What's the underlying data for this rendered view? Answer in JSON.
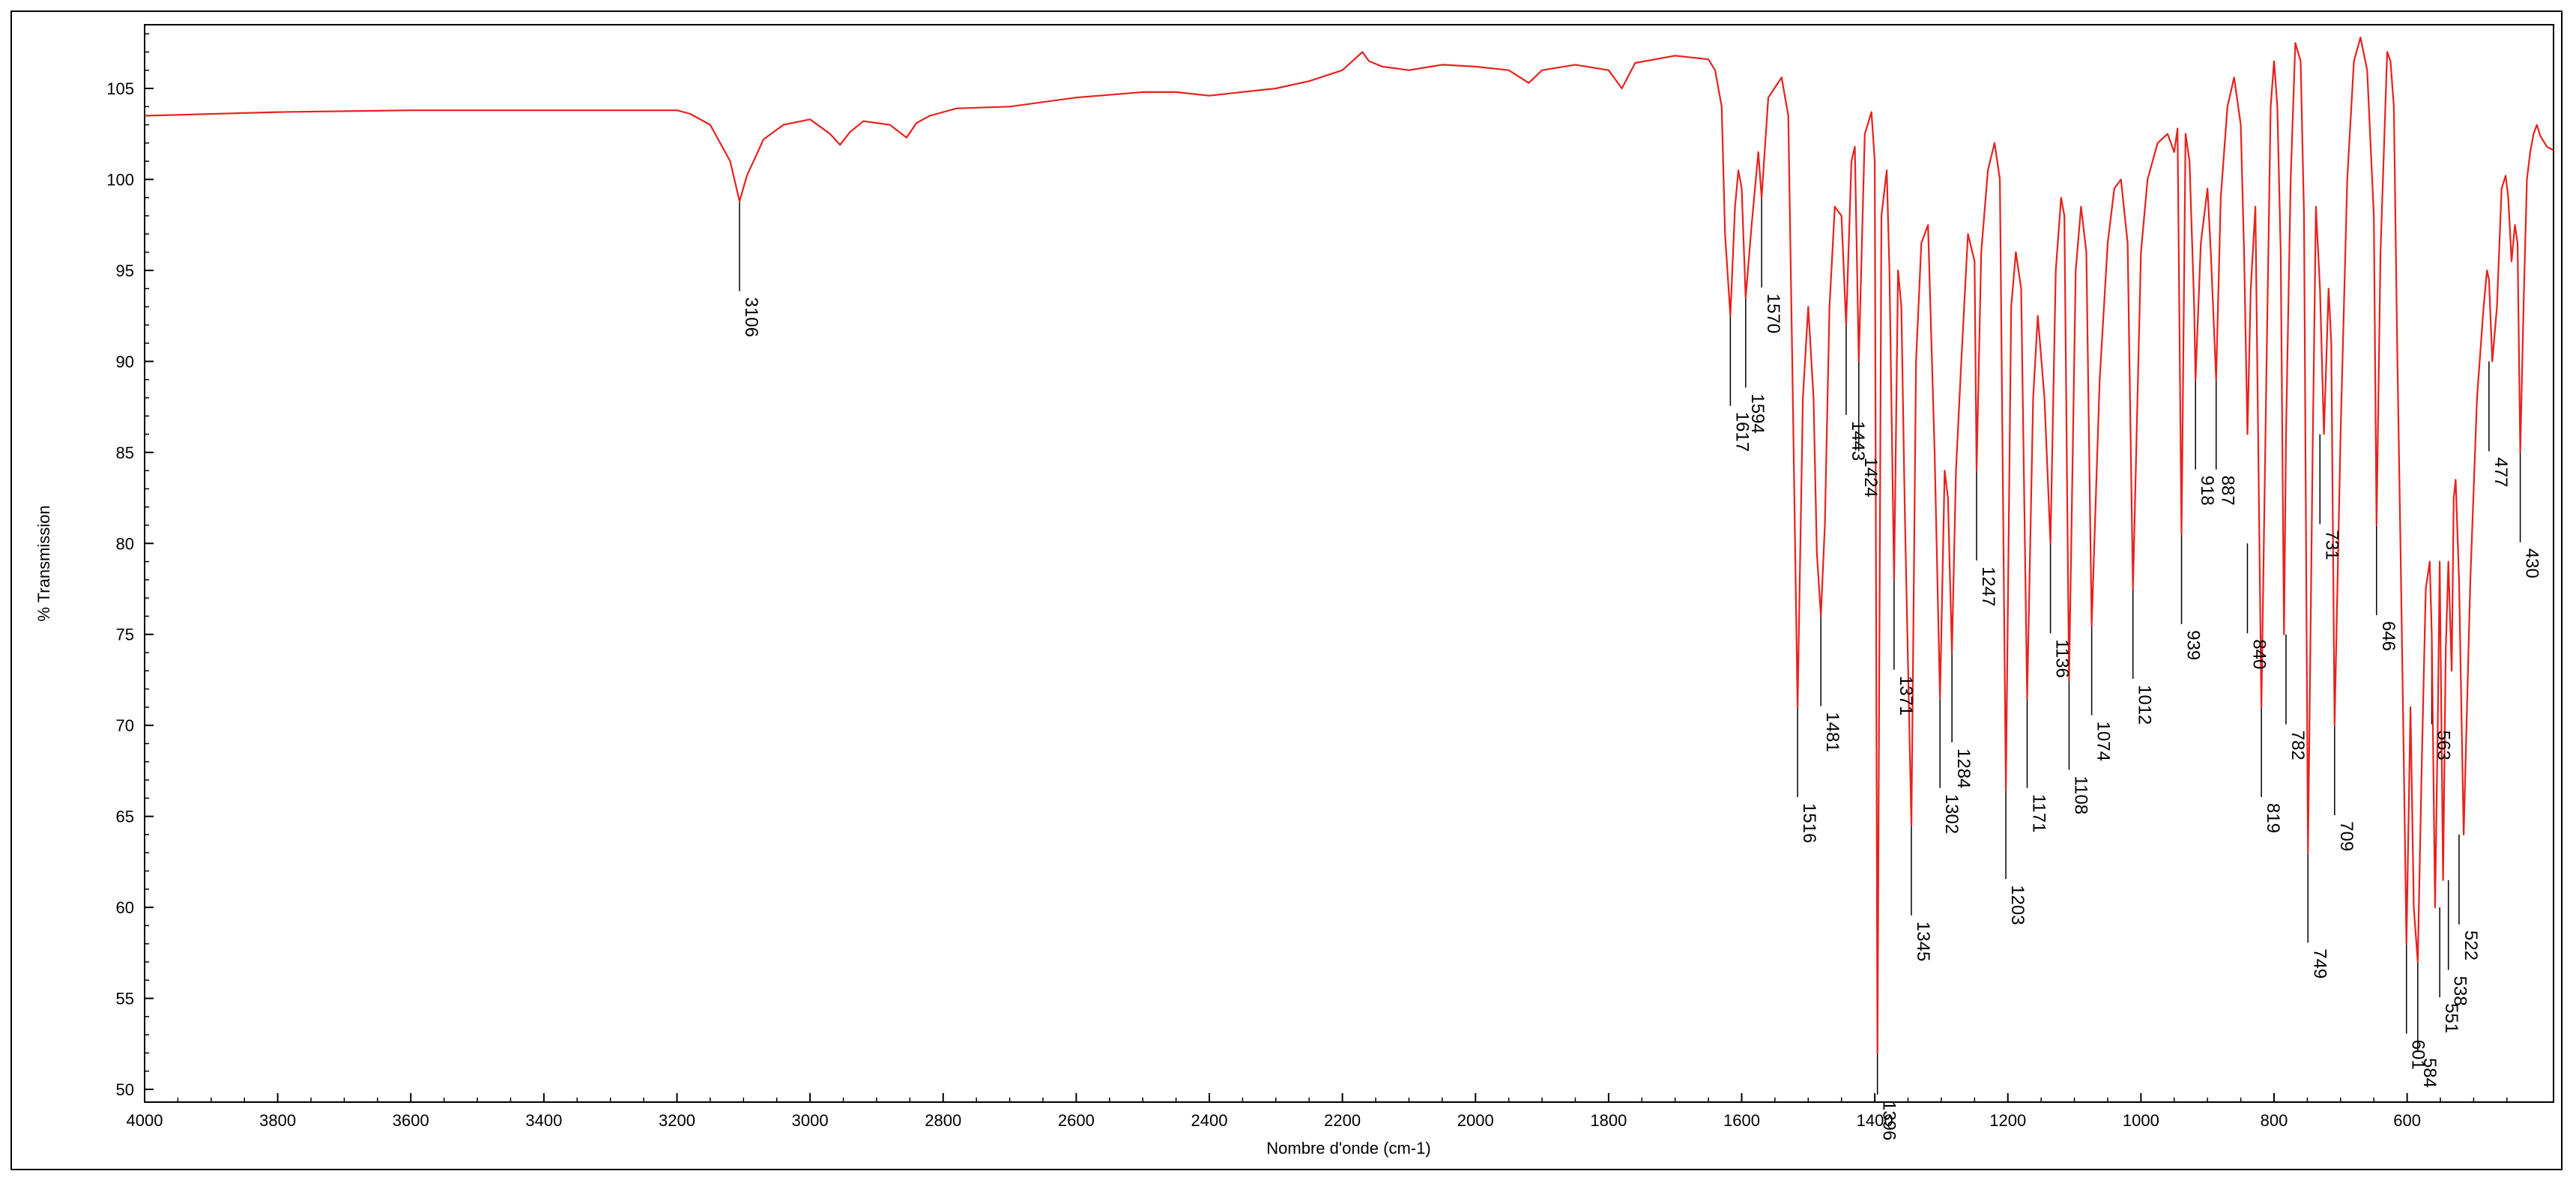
{
  "chart_data": {
    "type": "line",
    "title": "",
    "xlabel": "Nombre d'onde (cm-1)",
    "ylabel": "% Transmission",
    "xlim": [
      4000,
      380
    ],
    "ylim": [
      49.3,
      108.5
    ],
    "x_ticks": [
      "4000",
      "3800",
      "3600",
      "3400",
      "3200",
      "3000",
      "2800",
      "2600",
      "2400",
      "2200",
      "2000",
      "1800",
      "1600",
      "1400",
      "1200",
      "1000",
      "800",
      "600"
    ],
    "y_ticks": [
      "50",
      "55",
      "60",
      "65",
      "70",
      "75",
      "80",
      "85",
      "90",
      "95",
      "100",
      "105"
    ],
    "grid": false,
    "series": [
      {
        "color": "#e8211d",
        "x": [
          4000,
          3800,
          3600,
          3400,
          3300,
          3200,
          3180,
          3150,
          3120,
          3106,
          3095,
          3070,
          3040,
          3000,
          2970,
          2955,
          2940,
          2920,
          2880,
          2855,
          2840,
          2820,
          2780,
          2700,
          2600,
          2500,
          2450,
          2400,
          2300,
          2250,
          2200,
          2170,
          2160,
          2140,
          2100,
          2050,
          2000,
          1950,
          1920,
          1900,
          1850,
          1800,
          1780,
          1760,
          1700,
          1650,
          1640,
          1630,
          1625,
          1617,
          1610,
          1605,
          1600,
          1594,
          1585,
          1575,
          1570,
          1560,
          1540,
          1530,
          1524,
          1516,
          1508,
          1500,
          1492,
          1487,
          1481,
          1475,
          1468,
          1460,
          1450,
          1443,
          1435,
          1430,
          1424,
          1415,
          1405,
          1400,
          1396,
          1390,
          1382,
          1378,
          1371,
          1365,
          1360,
          1355,
          1345,
          1338,
          1330,
          1320,
          1310,
          1302,
          1295,
          1290,
          1284,
          1278,
          1270,
          1260,
          1250,
          1247,
          1240,
          1230,
          1220,
          1212,
          1203,
          1195,
          1188,
          1180,
          1171,
          1162,
          1155,
          1145,
          1136,
          1128,
          1120,
          1115,
          1108,
          1098,
          1090,
          1082,
          1074,
          1062,
          1050,
          1040,
          1030,
          1020,
          1012,
          1000,
          990,
          975,
          960,
          950,
          945,
          939,
          933,
          927,
          920,
          918,
          910,
          900,
          895,
          887,
          880,
          870,
          860,
          850,
          845,
          840,
          835,
          828,
          822,
          819,
          812,
          805,
          800,
          795,
          790,
          785,
          782,
          775,
          768,
          760,
          755,
          749,
          742,
          737,
          731,
          725,
          718,
          714,
          709,
          700,
          690,
          680,
          670,
          660,
          650,
          646,
          640,
          630,
          625,
          620,
          615,
          610,
          605,
          601,
          595,
          590,
          584,
          578,
          572,
          566,
          563,
          558,
          554,
          551,
          546,
          542,
          538,
          533,
          530,
          527,
          522,
          515,
          505,
          495,
          485,
          480,
          477,
          472,
          465,
          458,
          452,
          448,
          443,
          438,
          434,
          430,
          425,
          420,
          415,
          410,
          405,
          400,
          390,
          380
        ],
        "y": [
          103.5,
          103.7,
          103.8,
          103.8,
          103.8,
          103.8,
          103.6,
          103.0,
          101.0,
          98.8,
          100.2,
          102.2,
          103.0,
          103.3,
          102.5,
          101.9,
          102.6,
          103.2,
          103.0,
          102.3,
          103.1,
          103.5,
          103.9,
          104.0,
          104.5,
          104.8,
          104.8,
          104.6,
          105.0,
          105.4,
          106.0,
          107.0,
          106.5,
          106.2,
          106.0,
          106.3,
          106.2,
          106.0,
          105.3,
          106.0,
          106.3,
          106.0,
          105.0,
          106.4,
          106.8,
          106.6,
          106.0,
          104.0,
          97.0,
          92.5,
          98.5,
          100.5,
          99.5,
          93.5,
          97.5,
          101.5,
          99.0,
          104.5,
          105.6,
          103.5,
          90.0,
          71.0,
          88.0,
          93.0,
          88.0,
          79.5,
          76.0,
          81.0,
          93.0,
          98.5,
          98.0,
          92.0,
          101.0,
          101.8,
          90.0,
          102.5,
          103.7,
          101.0,
          52.0,
          98.0,
          100.5,
          95.0,
          78.0,
          95.0,
          93.0,
          82.0,
          64.5,
          90.0,
          96.5,
          97.5,
          85.0,
          71.5,
          84.0,
          82.5,
          74.0,
          84.0,
          90.0,
          97.0,
          95.5,
          84.0,
          96.0,
          100.5,
          102.0,
          100.0,
          66.5,
          93.0,
          96.0,
          94.0,
          71.5,
          88.0,
          92.5,
          88.0,
          80.0,
          95.0,
          99.0,
          98.0,
          72.5,
          95.0,
          98.5,
          96.0,
          75.5,
          89.0,
          96.5,
          99.5,
          100.0,
          96.5,
          77.5,
          96.0,
          100.0,
          102.0,
          102.5,
          101.5,
          102.8,
          80.5,
          102.5,
          101.0,
          93.0,
          89.0,
          96.5,
          99.5,
          96.0,
          89.0,
          99.0,
          104.0,
          105.6,
          103.0,
          96.0,
          86.0,
          94.0,
          98.5,
          80.0,
          71.0,
          88.0,
          104.0,
          106.5,
          104.0,
          96.0,
          75.0,
          86.0,
          100.0,
          107.5,
          106.5,
          98.0,
          63.0,
          85.0,
          98.5,
          94.0,
          86.0,
          94.0,
          91.0,
          70.0,
          86.0,
          100.0,
          106.5,
          107.8,
          106.0,
          98.0,
          81.0,
          96.0,
          107.0,
          106.5,
          104.0,
          91.0,
          80.0,
          68.0,
          58.0,
          71.0,
          60.0,
          57.0,
          68.0,
          77.5,
          79.0,
          75.0,
          60.0,
          70.0,
          79.0,
          61.5,
          74.0,
          79.0,
          73.0,
          82.5,
          83.5,
          78.0,
          64.0,
          78.0,
          88.0,
          93.0,
          95.0,
          94.5,
          90.0,
          93.0,
          99.5,
          100.2,
          99.0,
          95.5,
          97.5,
          96.5,
          85.0,
          93.0,
          100.0,
          101.5,
          102.5,
          103.0,
          102.4,
          101.8,
          101.6
        ]
      }
    ],
    "annotations": [
      {
        "label": "3106",
        "x": 3106,
        "y": 98.8
      },
      {
        "label": "1617",
        "x": 1617,
        "y": 92.5
      },
      {
        "label": "1594",
        "x": 1594,
        "y": 93.5
      },
      {
        "label": "1570",
        "x": 1570,
        "y": 99.0
      },
      {
        "label": "1516",
        "x": 1516,
        "y": 71.0
      },
      {
        "label": "1481",
        "x": 1481,
        "y": 76.0
      },
      {
        "label": "1443",
        "x": 1443,
        "y": 92.0
      },
      {
        "label": "1424",
        "x": 1424,
        "y": 90.0
      },
      {
        "label": "1396",
        "x": 1396,
        "y": 52.0
      },
      {
        "label": "1371",
        "x": 1371,
        "y": 78.0
      },
      {
        "label": "1345",
        "x": 1345,
        "y": 64.5
      },
      {
        "label": "1302",
        "x": 1302,
        "y": 71.5
      },
      {
        "label": "1284",
        "x": 1284,
        "y": 74.0
      },
      {
        "label": "1247",
        "x": 1247,
        "y": 84.0
      },
      {
        "label": "1203",
        "x": 1203,
        "y": 66.5
      },
      {
        "label": "1171",
        "x": 1171,
        "y": 71.5
      },
      {
        "label": "1136",
        "x": 1136,
        "y": 80.0
      },
      {
        "label": "1108",
        "x": 1108,
        "y": 72.5
      },
      {
        "label": "1074",
        "x": 1074,
        "y": 75.5
      },
      {
        "label": "1012",
        "x": 1012,
        "y": 77.5
      },
      {
        "label": "939",
        "x": 939,
        "y": 80.5
      },
      {
        "label": "918",
        "x": 918,
        "y": 89.0
      },
      {
        "label": "887",
        "x": 887,
        "y": 89.0
      },
      {
        "label": "840",
        "x": 840,
        "y": 80.0
      },
      {
        "label": "819",
        "x": 819,
        "y": 71.0
      },
      {
        "label": "782",
        "x": 782,
        "y": 75.0
      },
      {
        "label": "749",
        "x": 749,
        "y": 63.0
      },
      {
        "label": "731",
        "x": 731,
        "y": 86.0
      },
      {
        "label": "709",
        "x": 709,
        "y": 70.0
      },
      {
        "label": "646",
        "x": 646,
        "y": 81.0
      },
      {
        "label": "601",
        "x": 601,
        "y": 58.0
      },
      {
        "label": "584",
        "x": 584,
        "y": 57.0
      },
      {
        "label": "563",
        "x": 563,
        "y": 75.0
      },
      {
        "label": "551",
        "x": 551,
        "y": 60.0
      },
      {
        "label": "538",
        "x": 538,
        "y": 61.5
      },
      {
        "label": "522",
        "x": 522,
        "y": 64.0
      },
      {
        "label": "477",
        "x": 477,
        "y": 90.0
      },
      {
        "label": "430",
        "x": 430,
        "y": 85.0
      }
    ]
  }
}
